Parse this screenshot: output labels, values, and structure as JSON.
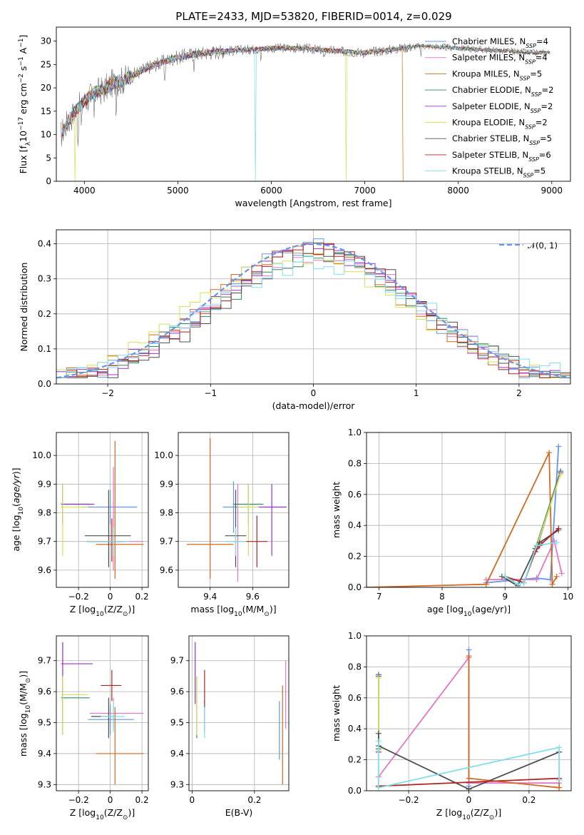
{
  "title": "PLATE=2433, MJD=53820, FIBERID=0014, z=0.029",
  "colors": {
    "Chabrier MILES": "#6495ed",
    "Salpeter MILES": "#e377c2",
    "Kroupa MILES": "#d2691e",
    "Chabrier ELODIE": "#2e8b57",
    "Salpeter ELODIE": "#9932cc",
    "Kroupa ELODIE": "#d4e157",
    "Chabrier STELIB": "#4f4f4f",
    "Salpeter STELIB": "#b22222",
    "Kroupa STELIB": "#80deea",
    "gaussian": "#6495ed"
  },
  "chart_data": [
    {
      "type": "line",
      "panel": "spectrum",
      "title": "PLATE=2433, MJD=53820, FIBERID=0014, z=0.029",
      "xlabel": "wavelength [Angstrom, rest frame]",
      "ylabel": "Flux [f_λ10^-17 erg cm^-2 s^-1 A^-1]",
      "xlim": [
        3700,
        9200
      ],
      "ylim": [
        0,
        33
      ],
      "xticks": [
        4000,
        5000,
        6000,
        7000,
        8000,
        9000
      ],
      "yticks": [
        0,
        5,
        10,
        15,
        20,
        25,
        30
      ],
      "grid": false,
      "legend": "upper-right",
      "legend_entries": [
        {
          "model": "Chabrier MILES",
          "nssp": "4"
        },
        {
          "model": "Salpeter MILES",
          "nssp": "4"
        },
        {
          "model": "Kroupa MILES",
          "nssp": "5"
        },
        {
          "model": "Chabrier ELODIE",
          "nssp": "2"
        },
        {
          "model": "Salpeter ELODIE",
          "nssp": "2"
        },
        {
          "model": "Kroupa ELODIE",
          "nssp": "2"
        },
        {
          "model": "Chabrier STELIB",
          "nssp": "5"
        },
        {
          "model": "Salpeter STELIB",
          "nssp": "6"
        },
        {
          "model": "Kroupa STELIB",
          "nssp": "5"
        }
      ],
      "continuum": {
        "x": [
          3750,
          3800,
          3900,
          4000,
          4100,
          4200,
          4300,
          4400,
          4500,
          4700,
          4900,
          5100,
          5300,
          5600,
          6000,
          6300,
          6600,
          7000,
          7200,
          7400,
          7600,
          8000,
          8400,
          8800,
          8980
        ],
        "y": [
          10,
          12,
          15,
          17,
          19,
          19.5,
          21,
          21.5,
          22.5,
          24.5,
          26,
          27,
          27.5,
          28,
          28.5,
          28.5,
          28,
          27.5,
          28,
          28.5,
          29,
          28.5,
          28,
          27.5,
          27.5
        ]
      },
      "dropouts": [
        {
          "model": "Kroupa MILES",
          "x": 7410
        },
        {
          "model": "Kroupa ELODIE",
          "x": 6800
        },
        {
          "model": "Kroupa STELIB",
          "x": 5830
        },
        {
          "model": "Kroupa ELODIE",
          "x": 3900
        }
      ]
    },
    {
      "type": "histogram",
      "panel": "residuals",
      "xlabel": "(data-model)/error",
      "ylabel": "Normed distribution",
      "xlim": [
        -2.5,
        2.5
      ],
      "ylim": [
        0,
        0.44
      ],
      "xticks": [
        -2,
        -1,
        0,
        1,
        2
      ],
      "yticks": [
        0.0,
        0.1,
        0.2,
        0.3,
        0.4
      ],
      "grid": true,
      "legend": "upper-right",
      "gaussian_label": "𝒩(0, 1)",
      "bin_width": 0.1,
      "x_start": -2.5,
      "series": [
        {
          "name": "Chabrier MILES",
          "offset": 0.0,
          "amp": 0.39,
          "sigma": 0.95,
          "seed": 1
        },
        {
          "name": "Salpeter MILES",
          "offset": 0.05,
          "amp": 0.37,
          "sigma": 1.0,
          "seed": 2
        },
        {
          "name": "Kroupa MILES",
          "offset": -0.05,
          "amp": 0.38,
          "sigma": 0.98,
          "seed": 3
        },
        {
          "name": "Chabrier ELODIE",
          "offset": 0.05,
          "amp": 0.36,
          "sigma": 1.02,
          "seed": 4
        },
        {
          "name": "Salpeter ELODIE",
          "offset": 0.0,
          "amp": 0.38,
          "sigma": 0.97,
          "seed": 5
        },
        {
          "name": "Kroupa ELODIE",
          "offset": -0.1,
          "amp": 0.36,
          "sigma": 1.05,
          "seed": 6
        },
        {
          "name": "Chabrier STELIB",
          "offset": 0.1,
          "amp": 0.38,
          "sigma": 0.96,
          "seed": 7
        },
        {
          "name": "Salpeter STELIB",
          "offset": 0.0,
          "amp": 0.39,
          "sigma": 0.95,
          "seed": 8
        },
        {
          "name": "Kroupa STELIB",
          "offset": 0.05,
          "amp": 0.34,
          "sigma": 1.1,
          "seed": 9
        }
      ]
    },
    {
      "type": "scatter",
      "panel": "age-vs-Z",
      "xlabel": "Z [log10(Z/Z⊙)]",
      "ylabel": "age  [log10(age/yr)]",
      "xlim": [
        -0.34,
        0.24
      ],
      "ylim": [
        9.54,
        10.08
      ],
      "xticks": [
        -0.2,
        0.0,
        0.2
      ],
      "yticks": [
        9.6,
        9.7,
        9.8,
        9.9,
        10.0
      ],
      "grid": true,
      "points": [
        {
          "name": "Chabrier MILES",
          "x": 0.0,
          "y": 9.82,
          "x_err": [
            0.18,
            0.17
          ],
          "y_err": [
            0.06,
            0.06
          ]
        },
        {
          "name": "Salpeter MILES",
          "x": 0.02,
          "y": 9.7,
          "x_err": [
            0.15,
            0.19
          ],
          "y_err": [
            0.1,
            0.26
          ]
        },
        {
          "name": "Kroupa MILES",
          "x": 0.03,
          "y": 9.69,
          "x_err": [
            0.12,
            0.18
          ],
          "y_err": [
            0.12,
            0.36
          ]
        },
        {
          "name": "Chabrier ELODIE",
          "x": -0.3,
          "y": 9.83,
          "x_err": [
            0.01,
            0.17
          ],
          "y_err": [
            0.07,
            0.07
          ]
        },
        {
          "name": "Salpeter ELODIE",
          "x": -0.3,
          "y": 9.83,
          "x_err": [
            0.01,
            0.2
          ],
          "y_err": [
            0.07,
            0.07
          ]
        },
        {
          "name": "Kroupa ELODIE",
          "x": -0.3,
          "y": 9.82,
          "x_err": [
            0.01,
            0.16
          ],
          "y_err": [
            0.17,
            0.08
          ]
        },
        {
          "name": "Chabrier STELIB",
          "x": -0.01,
          "y": 9.72,
          "x_err": [
            0.15,
            0.14
          ],
          "y_err": [
            0.11,
            0.16
          ]
        },
        {
          "name": "Salpeter STELIB",
          "x": 0.01,
          "y": 9.7,
          "x_err": [
            0.16,
            0.08
          ],
          "y_err": [
            0.07,
            0.08
          ]
        },
        {
          "name": "Kroupa STELIB",
          "x": 0.02,
          "y": 9.7,
          "x_err": [
            0.17,
            0.1
          ],
          "y_err": [
            0.05,
            0.05
          ]
        }
      ]
    },
    {
      "type": "scatter",
      "panel": "age-vs-mass",
      "xlabel": "mass [log10(M/M⊙)]",
      "ylabel": "",
      "xlim": [
        9.25,
        9.77
      ],
      "ylim": [
        9.54,
        10.08
      ],
      "xticks": [
        9.4,
        9.6
      ],
      "yticks": [
        9.6,
        9.7,
        9.8,
        9.9,
        10.0
      ],
      "grid": true,
      "points": [
        {
          "name": "Chabrier MILES",
          "x": 9.51,
          "y": 9.82,
          "x_err": [
            0.05,
            0.05
          ],
          "y_err": [
            0.09,
            0.09
          ]
        },
        {
          "name": "Salpeter MILES",
          "x": 9.53,
          "y": 9.7,
          "x_err": [
            0.05,
            0.05
          ],
          "y_err": [
            0.14,
            0.2
          ]
        },
        {
          "name": "Kroupa MILES",
          "x": 9.4,
          "y": 9.69,
          "x_err": [
            0.11,
            0.11
          ],
          "y_err": [
            0.12,
            0.37
          ]
        },
        {
          "name": "Chabrier ELODIE",
          "x": 9.58,
          "y": 9.83,
          "x_err": [
            0.07,
            0.07
          ],
          "y_err": [
            0.07,
            0.07
          ]
        },
        {
          "name": "Salpeter ELODIE",
          "x": 9.69,
          "y": 9.82,
          "x_err": [
            0.07,
            0.07
          ],
          "y_err": [
            0.17,
            0.08
          ]
        },
        {
          "name": "Kroupa ELODIE",
          "x": 9.58,
          "y": 9.82,
          "x_err": [
            0.05,
            0.05
          ],
          "y_err": [
            0.17,
            0.08
          ]
        },
        {
          "name": "Chabrier STELIB",
          "x": 9.52,
          "y": 9.72,
          "x_err": [
            0.05,
            0.05
          ],
          "y_err": [
            0.11,
            0.16
          ]
        },
        {
          "name": "Salpeter STELIB",
          "x": 9.62,
          "y": 9.7,
          "x_err": [
            0.05,
            0.05
          ],
          "y_err": [
            0.09,
            0.09
          ]
        },
        {
          "name": "Kroupa STELIB",
          "x": 9.52,
          "y": 9.7,
          "x_err": [
            0.05,
            0.05
          ],
          "y_err": [
            0.05,
            0.05
          ]
        }
      ]
    },
    {
      "type": "line",
      "panel": "mass-weight-vs-age",
      "xlabel": "age  [log10(age/yr)]",
      "ylabel": "mass weight",
      "xlim": [
        6.8,
        10.05
      ],
      "ylim": [
        0,
        1.0
      ],
      "xticks": [
        7,
        8,
        9,
        10
      ],
      "yticks": [
        0.0,
        0.2,
        0.4,
        0.6,
        0.8,
        1.0
      ],
      "grid": true,
      "series": [
        {
          "name": "Chabrier MILES",
          "x": [
            8.7,
            9.5,
            9.72,
            9.85
          ],
          "y": [
            0.03,
            0.06,
            0.05,
            0.91
          ]
        },
        {
          "name": "Salpeter MILES",
          "x": [
            8.7,
            9.5,
            9.78,
            9.9
          ],
          "y": [
            0.05,
            0.05,
            0.3,
            0.09
          ]
        },
        {
          "name": "Kroupa MILES",
          "x": [
            6.8,
            8.7,
            9.7,
            9.75,
            9.82
          ],
          "y": [
            0.0,
            0.02,
            0.87,
            0.02,
            0.07
          ]
        },
        {
          "name": "Chabrier ELODIE",
          "x": [
            9.5,
            9.88
          ],
          "y": [
            0.27,
            0.75
          ]
        },
        {
          "name": "Salpeter ELODIE",
          "x": [
            9.5,
            9.88
          ],
          "y": [
            0.25,
            0.74
          ]
        },
        {
          "name": "Kroupa ELODIE",
          "x": [
            9.5,
            9.88
          ],
          "y": [
            0.26,
            0.73
          ]
        },
        {
          "name": "Chabrier STELIB",
          "x": [
            8.95,
            9.2,
            9.48,
            9.55,
            9.85
          ],
          "y": [
            0.07,
            0.01,
            0.25,
            0.29,
            0.37
          ]
        },
        {
          "name": "Salpeter STELIB",
          "x": [
            9.0,
            9.3,
            9.48,
            9.55,
            9.85
          ],
          "y": [
            0.07,
            0.03,
            0.23,
            0.27,
            0.38
          ]
        },
        {
          "name": "Kroupa STELIB",
          "x": [
            9.0,
            9.2,
            9.3,
            9.5,
            9.82
          ],
          "y": [
            0.07,
            0.02,
            0.03,
            0.27,
            0.29
          ]
        }
      ]
    },
    {
      "type": "scatter",
      "panel": "mass-vs-Z",
      "xlabel": "Z [log10(Z/Z⊙)]",
      "ylabel": "mass [log10(M/M⊙)]",
      "xlim": [
        -0.34,
        0.24
      ],
      "ylim": [
        9.28,
        9.78
      ],
      "xticks": [
        -0.2,
        0.0,
        0.2
      ],
      "yticks": [
        9.3,
        9.4,
        9.5,
        9.6,
        9.7
      ],
      "grid": true,
      "points": [
        {
          "name": "Chabrier MILES",
          "x": 0.0,
          "y": 9.51,
          "x_err": [
            0.14,
            0.15
          ],
          "y_err": [
            0.05,
            0.05
          ]
        },
        {
          "name": "Salpeter MILES",
          "x": 0.02,
          "y": 9.53,
          "x_err": [
            0.15,
            0.19
          ],
          "y_err": [
            0.05,
            0.05
          ]
        },
        {
          "name": "Kroupa MILES",
          "x": 0.03,
          "y": 9.4,
          "x_err": [
            0.12,
            0.18
          ],
          "y_err": [
            0.1,
            0.15
          ]
        },
        {
          "name": "Chabrier ELODIE",
          "x": -0.3,
          "y": 9.58,
          "x_err": [
            0.01,
            0.17
          ],
          "y_err": [
            0.12,
            0.07
          ]
        },
        {
          "name": "Salpeter ELODIE",
          "x": -0.3,
          "y": 9.69,
          "x_err": [
            0.01,
            0.19
          ],
          "y_err": [
            0.19,
            0.07
          ]
        },
        {
          "name": "Kroupa ELODIE",
          "x": -0.3,
          "y": 9.59,
          "x_err": [
            0.01,
            0.16
          ],
          "y_err": [
            0.13,
            0.06
          ]
        },
        {
          "name": "Chabrier STELIB",
          "x": -0.01,
          "y": 9.52,
          "x_err": [
            0.11,
            0.05
          ],
          "y_err": [
            0.07,
            0.06
          ]
        },
        {
          "name": "Salpeter STELIB",
          "x": 0.01,
          "y": 9.62,
          "x_err": [
            0.07,
            0.06
          ],
          "y_err": [
            0.05,
            0.05
          ]
        },
        {
          "name": "Kroupa STELIB",
          "x": 0.02,
          "y": 9.52,
          "x_err": [
            0.08,
            0.07
          ],
          "y_err": [
            0.05,
            0.05
          ]
        }
      ]
    },
    {
      "type": "scatter",
      "panel": "mass-vs-EBV",
      "xlabel": "E(B-V)",
      "ylabel": "",
      "xlim": [
        -0.01,
        0.31
      ],
      "ylim": [
        9.28,
        9.78
      ],
      "xticks": [
        0.0,
        0.2
      ],
      "yticks": [
        9.3,
        9.4,
        9.5,
        9.6,
        9.7
      ],
      "grid": true,
      "points": [
        {
          "name": "Chabrier MILES",
          "x": 0.28,
          "y": 9.48,
          "y_err": [
            0.1,
            0.09
          ]
        },
        {
          "name": "Salpeter MILES",
          "x": 0.3,
          "y": 9.58,
          "y_err": [
            0.1,
            0.12
          ]
        },
        {
          "name": "Kroupa MILES",
          "x": 0.29,
          "y": 9.45,
          "y_err": [
            0.15,
            0.17
          ]
        },
        {
          "name": "Chabrier ELODIE",
          "x": 0.015,
          "y": 9.55,
          "y_err": [
            0.1,
            0.1
          ]
        },
        {
          "name": "Salpeter ELODIE",
          "x": 0.01,
          "y": 9.66,
          "y_err": [
            0.1,
            0.1
          ]
        },
        {
          "name": "Kroupa ELODIE",
          "x": 0.015,
          "y": 9.56,
          "y_err": [
            0.1,
            0.09
          ]
        },
        {
          "name": "Chabrier STELIB",
          "x": 0.04,
          "y": 9.52,
          "y_err": [
            0.05,
            0.05
          ]
        },
        {
          "name": "Salpeter STELIB",
          "x": 0.04,
          "y": 9.62,
          "y_err": [
            0.06,
            0.05
          ]
        },
        {
          "name": "Kroupa STELIB",
          "x": 0.04,
          "y": 9.5,
          "y_err": [
            0.05,
            0.05
          ]
        }
      ]
    },
    {
      "type": "line",
      "panel": "mass-weight-vs-Z",
      "xlabel": "Z [log10(Z/Z⊙)]",
      "ylabel": "mass weight",
      "xlim": [
        -0.34,
        0.34
      ],
      "ylim": [
        0,
        1.0
      ],
      "xticks": [
        -0.2,
        0.0,
        0.2
      ],
      "yticks": [
        0.0,
        0.2,
        0.4,
        0.6,
        0.8,
        1.0
      ],
      "grid": true,
      "series": [
        {
          "name": "Chabrier MILES",
          "x": [
            0.0,
            0.0,
            0.0
          ],
          "y": [
            0.91,
            0.03,
            0.05
          ]
        },
        {
          "name": "Salpeter MILES",
          "x": [
            -0.3,
            0.0,
            0.0,
            0.3
          ],
          "y": [
            0.09,
            0.86,
            0.05,
            0.05
          ]
        },
        {
          "name": "Kroupa MILES",
          "x": [
            0.0,
            0.0,
            0.3,
            0.3
          ],
          "y": [
            0.87,
            0.08,
            0.02,
            0.07
          ]
        },
        {
          "name": "Chabrier ELODIE",
          "x": [
            -0.3,
            -0.3
          ],
          "y": [
            0.27,
            0.75
          ]
        },
        {
          "name": "Salpeter ELODIE",
          "x": [
            -0.3,
            -0.3
          ],
          "y": [
            0.25,
            0.74
          ]
        },
        {
          "name": "Kroupa ELODIE",
          "x": [
            -0.3,
            -0.3
          ],
          "y": [
            0.26,
            0.73
          ]
        },
        {
          "name": "Chabrier STELIB",
          "x": [
            -0.3,
            -0.3,
            0.0,
            0.3
          ],
          "y": [
            0.37,
            0.29,
            0.01,
            0.25
          ]
        },
        {
          "name": "Salpeter STELIB",
          "x": [
            -0.3,
            0.3
          ],
          "y": [
            0.03,
            0.08
          ]
        },
        {
          "name": "Kroupa STELIB",
          "x": [
            -0.3,
            -0.3,
            0.3,
            0.3
          ],
          "y": [
            0.32,
            0.02,
            0.28,
            0.07
          ]
        }
      ]
    }
  ]
}
